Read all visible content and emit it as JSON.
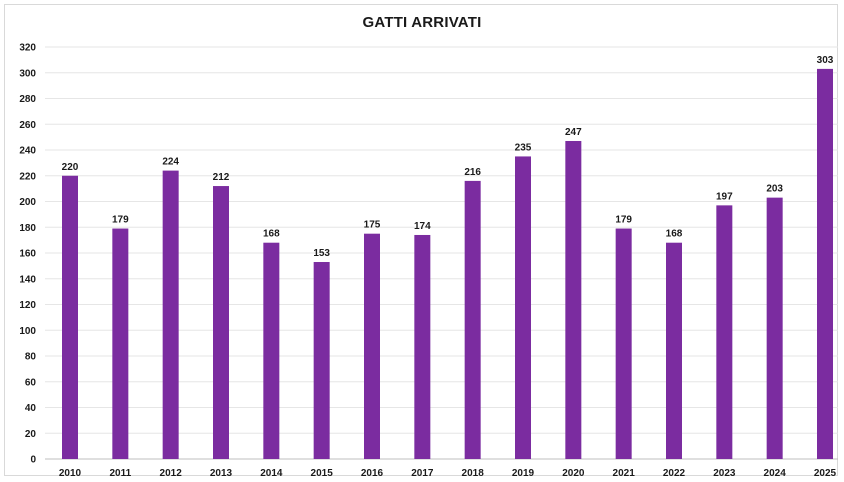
{
  "chart_data": {
    "type": "bar",
    "title": "GATTI ARRIVATI",
    "categories": [
      "2010",
      "2011",
      "2012",
      "2013",
      "2014",
      "2015",
      "2016",
      "2017",
      "2018",
      "2019",
      "2020",
      "2021",
      "2022",
      "2023",
      "2024",
      "2025"
    ],
    "values": [
      220,
      179,
      224,
      212,
      168,
      153,
      175,
      174,
      216,
      235,
      247,
      179,
      168,
      197,
      203,
      303
    ],
    "ylim": [
      0,
      320
    ],
    "yticks": [
      0,
      20,
      40,
      60,
      80,
      100,
      120,
      140,
      160,
      180,
      200,
      220,
      240,
      260,
      280,
      300,
      320
    ],
    "grid": true,
    "bar_color": "#7b2ca0",
    "grid_color": "#e6e6e6"
  }
}
